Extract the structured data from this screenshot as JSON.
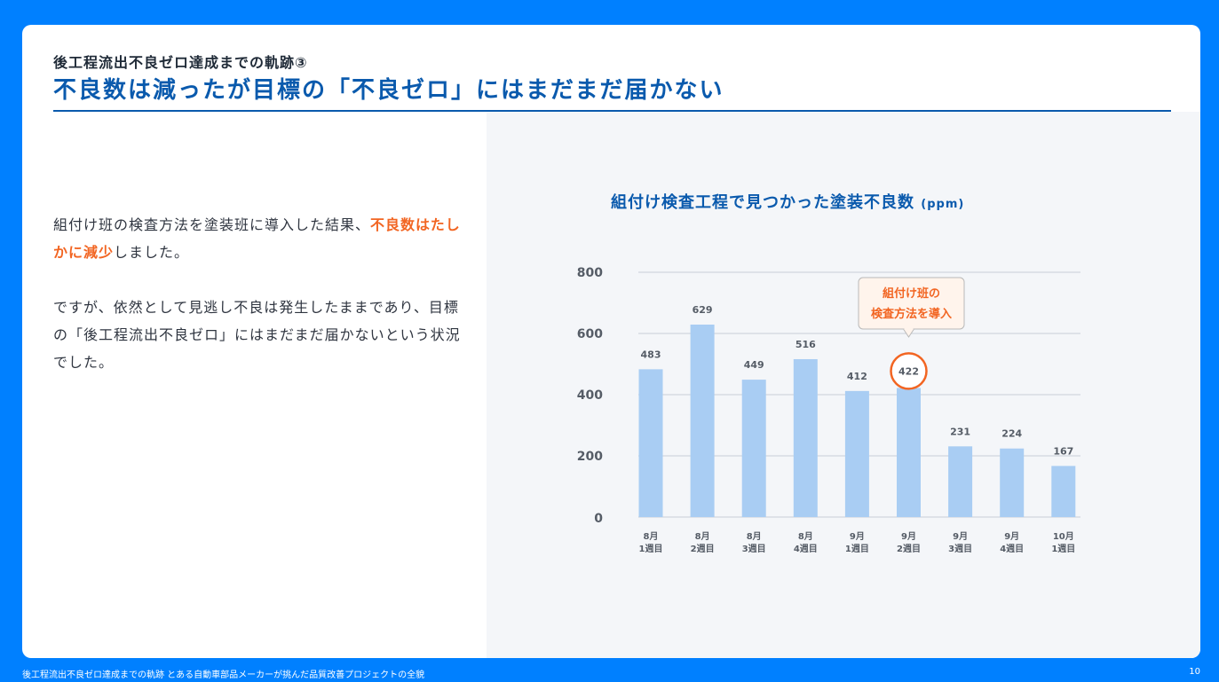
{
  "header": {
    "kicker": "後工程流出不良ゼロ達成までの軌跡③",
    "title": "不良数は減ったが目標の「不良ゼロ」にはまだまだ届かない"
  },
  "body": {
    "p1_pre": "組付け班の検査方法を塗装班に導入した結果、",
    "p1_highlight": "不良数はたしかに減少",
    "p1_post": "しました。",
    "p2": "ですが、依然として見逃し不良は発生したままであり、目標の「後工程流出不良ゼロ」にはまだまだ届かないという状況でした。"
  },
  "chart_data": {
    "type": "bar",
    "title": "組付け検査工程で見つかった塗装不良数",
    "unit": "(ppm)",
    "categories": [
      [
        "8月",
        "1週目"
      ],
      [
        "8月",
        "2週目"
      ],
      [
        "8月",
        "3週目"
      ],
      [
        "8月",
        "4週目"
      ],
      [
        "9月",
        "1週目"
      ],
      [
        "9月",
        "2週目"
      ],
      [
        "9月",
        "3週目"
      ],
      [
        "9月",
        "4週目"
      ],
      [
        "10月",
        "1週目"
      ]
    ],
    "values": [
      483,
      629,
      449,
      516,
      412,
      422,
      231,
      224,
      167
    ],
    "ylim": [
      0,
      800
    ],
    "yticks": [
      0,
      200,
      400,
      600,
      800
    ],
    "grid": true,
    "highlight_index": 5,
    "annotation": [
      "組付け班の",
      "検査方法を導入"
    ],
    "colors": {
      "bar": "#a9cdf3",
      "highlight": "#f26522",
      "grid": "#c9ced6",
      "axis_text": "#555c66"
    }
  },
  "footer": {
    "text": "後工程流出不良ゼロ達成までの軌跡 とある自動車部品メーカーが挑んだ品質改善プロジェクトの全貌",
    "page": "10"
  }
}
